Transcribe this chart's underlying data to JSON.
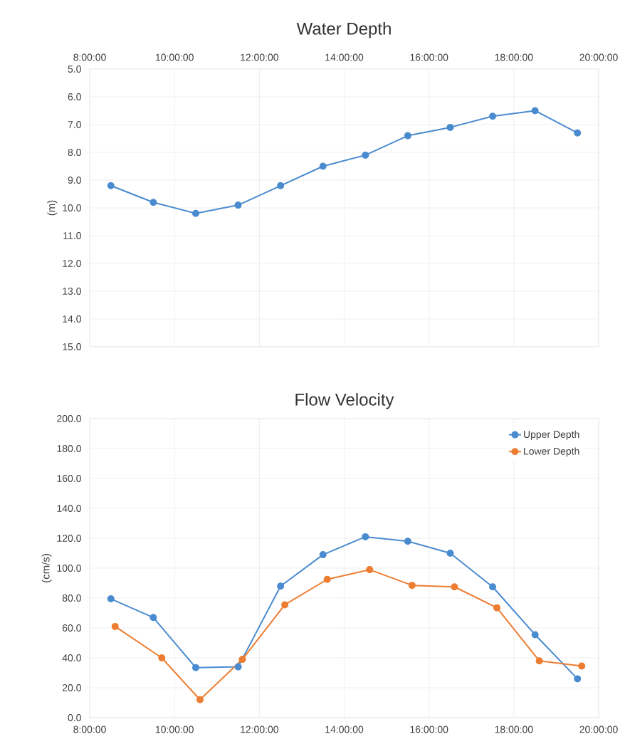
{
  "chart_data": [
    {
      "type": "line",
      "title": "Water Depth",
      "ylabel": "(m)",
      "xlim": [
        8,
        20
      ],
      "xticks": [
        {
          "value": 8,
          "label": "8:00:00"
        },
        {
          "value": 10,
          "label": "10:00:00"
        },
        {
          "value": 12,
          "label": "12:00:00"
        },
        {
          "value": 14,
          "label": "14:00:00"
        },
        {
          "value": 16,
          "label": "16:00:00"
        },
        {
          "value": 18,
          "label": "18:00:00"
        },
        {
          "value": 20,
          "label": "20:00:00"
        }
      ],
      "ylim": [
        15,
        5
      ],
      "yticks": [
        {
          "value": 5,
          "label": "5.0"
        },
        {
          "value": 6,
          "label": "6.0"
        },
        {
          "value": 7,
          "label": "7.0"
        },
        {
          "value": 8,
          "label": "8.0"
        },
        {
          "value": 9,
          "label": "9.0"
        },
        {
          "value": 10,
          "label": "10.0"
        },
        {
          "value": 11,
          "label": "11.0"
        },
        {
          "value": 12,
          "label": "12.0"
        },
        {
          "value": 13,
          "label": "13.0"
        },
        {
          "value": 14,
          "label": "14.0"
        },
        {
          "value": 15,
          "label": "15.0"
        }
      ],
      "grid": true,
      "marker": "circle",
      "line_style": "solid",
      "series": [
        {
          "color": "#4a8bd0",
          "x": [
            8.5,
            9.5,
            10.5,
            11.5,
            12.5,
            13.5,
            14.5,
            15.5,
            16.5,
            17.5,
            18.5,
            19.5
          ],
          "values": [
            9.2,
            9.8,
            10.2,
            9.9,
            9.2,
            8.5,
            8.1,
            7.4,
            7.1,
            6.7,
            6.5,
            7.3
          ]
        }
      ]
    },
    {
      "type": "line",
      "title": "Flow Velocity",
      "ylabel": "(cm/s)",
      "xlim": [
        8,
        20
      ],
      "xticks": [
        {
          "value": 8,
          "label": "8:00:00"
        },
        {
          "value": 10,
          "label": "10:00:00"
        },
        {
          "value": 12,
          "label": "12:00:00"
        },
        {
          "value": 14,
          "label": "14:00:00"
        },
        {
          "value": 16,
          "label": "16:00:00"
        },
        {
          "value": 18,
          "label": "18:00:00"
        },
        {
          "value": 20,
          "label": "20:00:00"
        }
      ],
      "ylim": [
        0,
        200
      ],
      "yticks": [
        {
          "value": 0,
          "label": "0.0"
        },
        {
          "value": 20,
          "label": "20.0"
        },
        {
          "value": 40,
          "label": "40.0"
        },
        {
          "value": 60,
          "label": "60.0"
        },
        {
          "value": 80,
          "label": "80.0"
        },
        {
          "value": 100,
          "label": "100.0"
        },
        {
          "value": 120,
          "label": "120.0"
        },
        {
          "value": 140,
          "label": "140.0"
        },
        {
          "value": 160,
          "label": "160.0"
        },
        {
          "value": 180,
          "label": "180.0"
        },
        {
          "value": 200,
          "label": "200.0"
        }
      ],
      "grid": true,
      "marker": "circle",
      "line_style": "solid",
      "legend": "top right",
      "series": [
        {
          "name": "Upper Depth",
          "color": "#4a8bd0",
          "x": [
            8.5,
            9.5,
            10.5,
            11.5,
            12.5,
            13.5,
            14.5,
            15.5,
            16.5,
            17.5,
            18.5,
            19.5
          ],
          "values": [
            79.5,
            67,
            33.5,
            34,
            88,
            109,
            121,
            118,
            110,
            87.5,
            55.5,
            26
          ]
        },
        {
          "name": "Lower Depth",
          "color": "#ed7d31",
          "x": [
            8.6,
            9.7,
            10.6,
            11.6,
            12.6,
            13.6,
            14.6,
            15.6,
            16.6,
            17.6,
            18.6,
            19.6
          ],
          "values": [
            61,
            40,
            12,
            39,
            75.5,
            92.5,
            99,
            88.5,
            87.5,
            73.5,
            38,
            34.5
          ]
        }
      ]
    }
  ]
}
